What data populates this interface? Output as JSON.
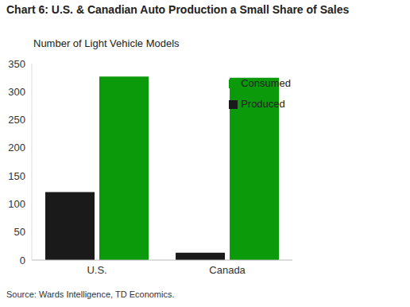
{
  "chart_data": {
    "type": "bar",
    "title": "Chart 6: U.S. & Canadian Auto Production a Small Share of Sales",
    "y_label": "Number of Light Vehicle Models",
    "source": "Source: Wards Intelligence, TD Economics.",
    "categories": [
      "U.S.",
      "Canada"
    ],
    "series": [
      {
        "name": "Produced",
        "color": "#1a1a1a",
        "values": [
          121,
          13
        ]
      },
      {
        "name": "Consumed",
        "color": "#0a9a0a",
        "values": [
          327,
          325
        ]
      }
    ],
    "ylim": [
      0,
      350
    ],
    "yticks": [
      0,
      50,
      100,
      150,
      200,
      250,
      300,
      350
    ],
    "grid": false,
    "legend": "top right"
  }
}
